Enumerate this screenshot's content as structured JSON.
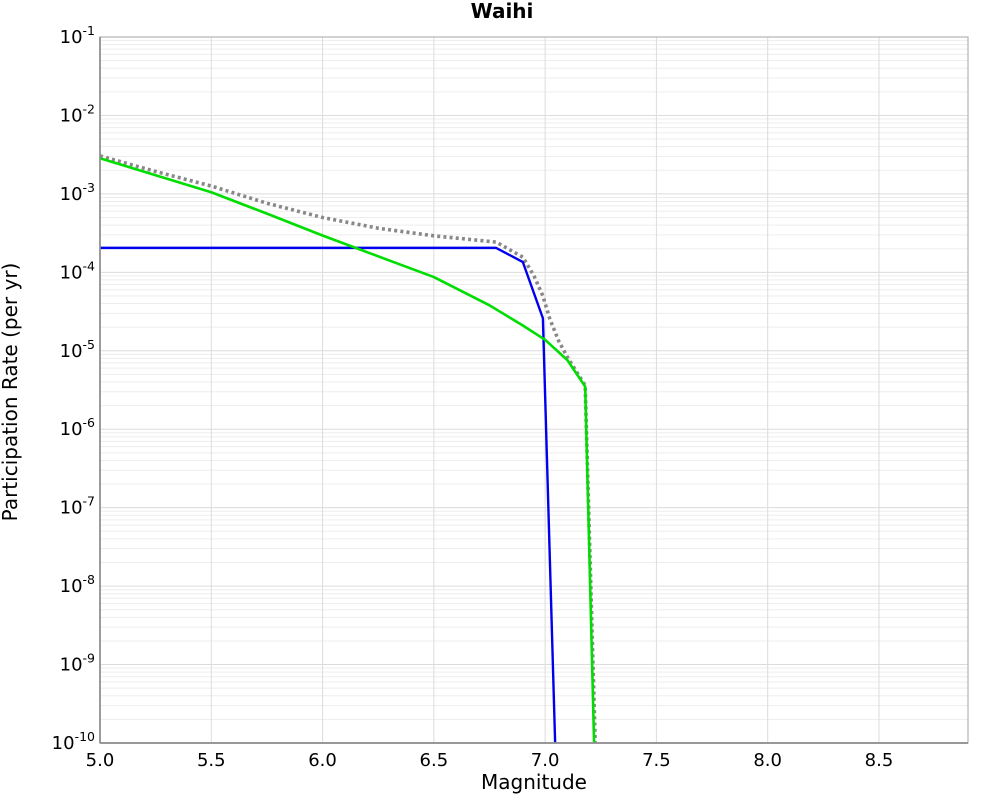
{
  "page": {
    "background": "#ffffff"
  },
  "chart_data": {
    "type": "line",
    "title": "Waihi",
    "xlabel": "Magnitude",
    "ylabel": "Participation Rate (per yr)",
    "x_scale": "linear",
    "y_scale": "log",
    "xlim": [
      5.0,
      8.9
    ],
    "ylim": [
      1e-10,
      0.1
    ],
    "grid": true,
    "legend": "none",
    "x_tick_labels": [
      "5.0",
      "5.5",
      "6.0",
      "6.5",
      "7.0",
      "7.5",
      "8.0",
      "8.5"
    ],
    "x_tick_values": [
      5.0,
      5.5,
      6.0,
      6.5,
      7.0,
      7.5,
      8.0,
      8.5
    ],
    "y_tick_exponents": [
      -1,
      -2,
      -3,
      -4,
      -5,
      -6,
      -7,
      -8,
      -9,
      -10
    ],
    "grid_major_color": "#dcdcdc",
    "grid_minor_color": "#ededed",
    "spine_color": "#8c8c8c",
    "box_color": "#b3b3b3",
    "series": [
      {
        "name": "total-rate-dotted-gray",
        "color": "#888888",
        "style": "dotted",
        "width": 3.6,
        "points": [
          [
            5.0,
            0.00305
          ],
          [
            5.25,
            0.00193
          ],
          [
            5.5,
            0.00126
          ],
          [
            5.75,
            0.00076
          ],
          [
            6.0,
            0.0005
          ],
          [
            6.25,
            0.000365
          ],
          [
            6.5,
            0.000292
          ],
          [
            6.78,
            0.000243
          ],
          [
            6.9,
            0.000156
          ],
          [
            6.95,
            9e-05
          ],
          [
            6.99,
            5e-05
          ],
          [
            7.02,
            2.6e-05
          ],
          [
            7.06,
            1.35e-05
          ],
          [
            7.1,
            8.3e-06
          ],
          [
            7.18,
            3.6e-06
          ],
          [
            7.225,
            1e-10
          ]
        ]
      },
      {
        "name": "blue-component-rate",
        "color": "#0000ee",
        "style": "solid",
        "width": 2.4,
        "points": [
          [
            5.0,
            0.000205
          ],
          [
            6.78,
            0.000205
          ],
          [
            6.9,
            0.000135
          ],
          [
            6.99,
            2.6e-05
          ],
          [
            7.045,
            1e-10
          ]
        ]
      },
      {
        "name": "green-component-rate",
        "color": "#00dd00",
        "style": "solid",
        "width": 2.6,
        "points": [
          [
            5.0,
            0.00285
          ],
          [
            5.25,
            0.00173
          ],
          [
            5.5,
            0.00105
          ],
          [
            5.75,
            0.00056
          ],
          [
            6.0,
            0.000295
          ],
          [
            6.25,
            0.00016
          ],
          [
            6.5,
            8.7e-05
          ],
          [
            6.75,
            3.8e-05
          ],
          [
            6.9,
            2.1e-05
          ],
          [
            7.0,
            1.38e-05
          ],
          [
            7.1,
            7.6e-06
          ],
          [
            7.18,
            3.5e-06
          ],
          [
            7.22,
            1e-10
          ]
        ]
      }
    ]
  }
}
